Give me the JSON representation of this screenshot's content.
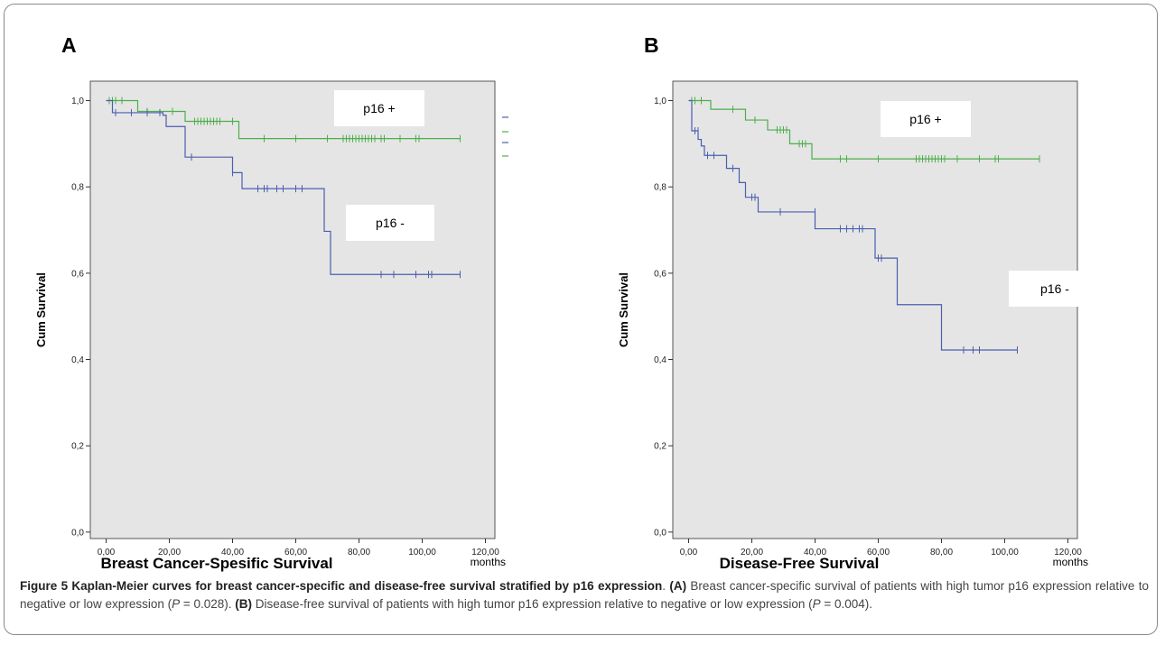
{
  "colors": {
    "plot_bg": "#e5e5e5",
    "p16_positive": "#4daf4a",
    "p16_negative": "#4a5fb0"
  },
  "caption": {
    "figure_number": "Figure 5",
    "title": "Kaplan-Meier curves for breast cancer-specific and disease-free survival stratified by p16 expression",
    "a_label": "(A)",
    "a_text": "Breast cancer-specific survival of patients with high tumor p16 expression relative to negative or low expression (",
    "p_symbol": "P",
    "a_pvalue": " = 0.028). ",
    "b_label": "(B)",
    "b_text": "Disease-free survival of patients with high tumor p16 expression relative to negative or low expression (",
    "b_pvalue": " = 0.004)."
  },
  "chart_data": [
    {
      "type": "line",
      "panel_label": "A",
      "xlabel": "Breast Cancer-Spesific Survival",
      "x_unit_label": "months",
      "ylabel": "Cum Survival",
      "xlim": [
        -5,
        123
      ],
      "ylim": [
        -0.015,
        1.045
      ],
      "x_ticks": [
        "0,00",
        "20,00",
        "40,00",
        "60,00",
        "80,00",
        "100,00",
        "120,00"
      ],
      "x_tick_values": [
        0,
        20,
        40,
        60,
        80,
        100,
        120
      ],
      "y_ticks": [
        "0,0",
        "0,2",
        "0,4",
        "0,6",
        "0,8",
        "1,0"
      ],
      "y_tick_values": [
        0,
        0.2,
        0.4,
        0.6,
        0.8,
        1.0
      ],
      "grid": false,
      "series": [
        {
          "name": "p16 +",
          "color": "#4daf4a",
          "label_position": "top",
          "steps": [
            [
              0,
              1.0
            ],
            [
              10,
              0.975
            ],
            [
              25,
              0.952
            ],
            [
              42,
              0.912
            ],
            [
              112,
              0.912
            ]
          ],
          "censored": [
            [
              1,
              1.0
            ],
            [
              2,
              1.0
            ],
            [
              3,
              1.0
            ],
            [
              5,
              1.0
            ],
            [
              13,
              0.975
            ],
            [
              21,
              0.975
            ],
            [
              28,
              0.952
            ],
            [
              29,
              0.952
            ],
            [
              30,
              0.952
            ],
            [
              31,
              0.952
            ],
            [
              32,
              0.952
            ],
            [
              33,
              0.952
            ],
            [
              34,
              0.952
            ],
            [
              35,
              0.952
            ],
            [
              36,
              0.952
            ],
            [
              40,
              0.952
            ],
            [
              50,
              0.912
            ],
            [
              60,
              0.912
            ],
            [
              70,
              0.912
            ],
            [
              75,
              0.912
            ],
            [
              76,
              0.912
            ],
            [
              77,
              0.912
            ],
            [
              78,
              0.912
            ],
            [
              79,
              0.912
            ],
            [
              80,
              0.912
            ],
            [
              81,
              0.912
            ],
            [
              82,
              0.912
            ],
            [
              83,
              0.912
            ],
            [
              84,
              0.912
            ],
            [
              85,
              0.912
            ],
            [
              87,
              0.912
            ],
            [
              88,
              0.912
            ],
            [
              93,
              0.912
            ],
            [
              98,
              0.912
            ],
            [
              99,
              0.912
            ],
            [
              112,
              0.912
            ]
          ]
        },
        {
          "name": "p16 -",
          "color": "#4a5fb0",
          "label_position": "middle",
          "steps": [
            [
              0,
              1.0
            ],
            [
              2,
              0.972
            ],
            [
              18,
              0.966
            ],
            [
              19,
              0.94
            ],
            [
              25,
              0.869
            ],
            [
              40,
              0.833
            ],
            [
              43,
              0.796
            ],
            [
              69,
              0.697
            ],
            [
              71,
              0.597
            ],
            [
              112,
              0.597
            ]
          ],
          "censored": [
            [
              3,
              0.972
            ],
            [
              8,
              0.972
            ],
            [
              13,
              0.972
            ],
            [
              17,
              0.972
            ],
            [
              27,
              0.869
            ],
            [
              40,
              0.833
            ],
            [
              48,
              0.796
            ],
            [
              50,
              0.796
            ],
            [
              51,
              0.796
            ],
            [
              54,
              0.796
            ],
            [
              56,
              0.796
            ],
            [
              60,
              0.796
            ],
            [
              62,
              0.796
            ],
            [
              87,
              0.597
            ],
            [
              91,
              0.597
            ],
            [
              98,
              0.597
            ],
            [
              102,
              0.597
            ],
            [
              103,
              0.597
            ],
            [
              112,
              0.597
            ]
          ]
        }
      ]
    },
    {
      "type": "line",
      "panel_label": "B",
      "xlabel": "Disease-Free Survival",
      "x_unit_label": "months",
      "ylabel": "Cum Survival",
      "xlim": [
        -5,
        123
      ],
      "ylim": [
        -0.015,
        1.045
      ],
      "x_ticks": [
        "0,00",
        "20,00",
        "40,00",
        "60,00",
        "80,00",
        "100,00",
        "120,00"
      ],
      "x_tick_values": [
        0,
        20,
        40,
        60,
        80,
        100,
        120
      ],
      "y_ticks": [
        "0,0",
        "0,2",
        "0,4",
        "0,6",
        "0,8",
        "1,0"
      ],
      "y_tick_values": [
        0,
        0.2,
        0.4,
        0.6,
        0.8,
        1.0
      ],
      "grid": false,
      "series": [
        {
          "name": "p16 +",
          "color": "#4daf4a",
          "label_position": "top",
          "steps": [
            [
              0,
              1.0
            ],
            [
              7,
              0.98
            ],
            [
              18,
              0.955
            ],
            [
              25,
              0.932
            ],
            [
              32,
              0.9
            ],
            [
              39,
              0.865
            ],
            [
              111,
              0.865
            ]
          ],
          "censored": [
            [
              1,
              1.0
            ],
            [
              2,
              1.0
            ],
            [
              4,
              1.0
            ],
            [
              14,
              0.98
            ],
            [
              21,
              0.955
            ],
            [
              28,
              0.932
            ],
            [
              29,
              0.932
            ],
            [
              30,
              0.932
            ],
            [
              31,
              0.932
            ],
            [
              35,
              0.9
            ],
            [
              36,
              0.9
            ],
            [
              37,
              0.9
            ],
            [
              48,
              0.865
            ],
            [
              50,
              0.865
            ],
            [
              60,
              0.865
            ],
            [
              72,
              0.865
            ],
            [
              73,
              0.865
            ],
            [
              74,
              0.865
            ],
            [
              75,
              0.865
            ],
            [
              76,
              0.865
            ],
            [
              77,
              0.865
            ],
            [
              78,
              0.865
            ],
            [
              79,
              0.865
            ],
            [
              80,
              0.865
            ],
            [
              81,
              0.865
            ],
            [
              85,
              0.865
            ],
            [
              92,
              0.865
            ],
            [
              97,
              0.865
            ],
            [
              98,
              0.865
            ],
            [
              111,
              0.865
            ]
          ]
        },
        {
          "name": "p16 -",
          "color": "#4a5fb0",
          "label_position": "middle",
          "steps": [
            [
              0,
              1.0
            ],
            [
              1,
              0.93
            ],
            [
              3,
              0.91
            ],
            [
              4,
              0.895
            ],
            [
              5,
              0.873
            ],
            [
              12,
              0.843
            ],
            [
              16,
              0.81
            ],
            [
              18,
              0.776
            ],
            [
              22,
              0.742
            ],
            [
              40,
              0.703
            ],
            [
              59,
              0.635
            ],
            [
              66,
              0.527
            ],
            [
              80,
              0.422
            ],
            [
              104,
              0.422
            ]
          ],
          "censored": [
            [
              2,
              0.93
            ],
            [
              3,
              0.93
            ],
            [
              6,
              0.873
            ],
            [
              8,
              0.873
            ],
            [
              14,
              0.843
            ],
            [
              20,
              0.776
            ],
            [
              21,
              0.776
            ],
            [
              29,
              0.742
            ],
            [
              40,
              0.742
            ],
            [
              48,
              0.703
            ],
            [
              50,
              0.703
            ],
            [
              52,
              0.703
            ],
            [
              54,
              0.703
            ],
            [
              55,
              0.703
            ],
            [
              60,
              0.635
            ],
            [
              61,
              0.635
            ],
            [
              87,
              0.422
            ],
            [
              90,
              0.422
            ],
            [
              92,
              0.422
            ],
            [
              104,
              0.422
            ]
          ]
        }
      ]
    }
  ]
}
